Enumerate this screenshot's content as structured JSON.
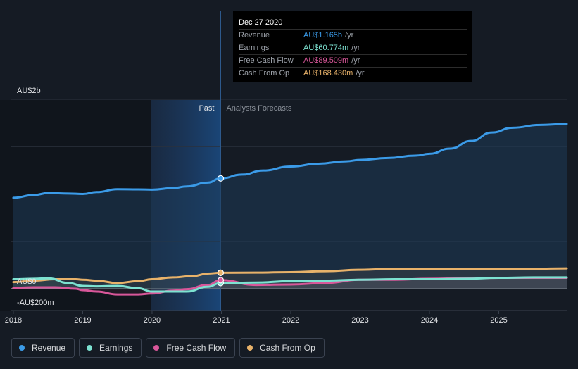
{
  "tooltip": {
    "date": "Dec 27 2020",
    "rows": [
      {
        "label": "Revenue",
        "value": "AU$1.165b",
        "unit": "/yr",
        "color": "#3b9be8"
      },
      {
        "label": "Earnings",
        "value": "AU$60.774m",
        "unit": "/yr",
        "color": "#7de2d1"
      },
      {
        "label": "Free Cash Flow",
        "value": "AU$89.509m",
        "unit": "/yr",
        "color": "#d9579a"
      },
      {
        "label": "Cash From Op",
        "value": "AU$168.430m",
        "unit": "/yr",
        "color": "#e8b26a"
      }
    ]
  },
  "labels": {
    "past": "Past",
    "forecast": "Analysts Forecasts"
  },
  "legend": [
    {
      "label": "Revenue",
      "color": "#3b9be8"
    },
    {
      "label": "Earnings",
      "color": "#7de2d1"
    },
    {
      "label": "Free Cash Flow",
      "color": "#d9579a"
    },
    {
      "label": "Cash From Op",
      "color": "#e8b26a"
    }
  ],
  "chart_data": {
    "type": "line",
    "y_tick_labels": [
      "AU$2b",
      "AU$0",
      "-AU$200m"
    ],
    "y_tick_values": [
      2000,
      0,
      -200
    ],
    "ylim": [
      -200,
      2000
    ],
    "xlim": [
      2017.97,
      2025.98
    ],
    "x_tick_labels": [
      "2018",
      "2019",
      "2020",
      "2021",
      "2022",
      "2023",
      "2024",
      "2025"
    ],
    "past_end": 2020.99,
    "highlight_start": 2019.98,
    "series": [
      {
        "name": "Revenue",
        "color": "#3b9be8",
        "x": [
          2018.0,
          2018.3,
          2018.5,
          2018.8,
          2019.0,
          2019.2,
          2019.5,
          2019.8,
          2020.0,
          2020.3,
          2020.5,
          2020.8,
          2020.99,
          2021.3,
          2021.6,
          2022.0,
          2022.4,
          2022.8,
          2023.0,
          2023.4,
          2023.8,
          2024.0,
          2024.3,
          2024.6,
          2024.9,
          2025.2,
          2025.6,
          2025.98
        ],
        "y": [
          960,
          990,
          1010,
          1005,
          1000,
          1020,
          1050,
          1048,
          1046,
          1062,
          1080,
          1120,
          1165,
          1205,
          1248,
          1290,
          1320,
          1345,
          1360,
          1380,
          1405,
          1425,
          1480,
          1560,
          1650,
          1700,
          1730,
          1740
        ]
      },
      {
        "name": "Earnings",
        "color": "#7de2d1",
        "x": [
          2018.0,
          2018.3,
          2018.5,
          2018.8,
          2019.0,
          2019.2,
          2019.5,
          2019.8,
          2020.0,
          2020.3,
          2020.5,
          2020.8,
          2020.99,
          2021.5,
          2022.0,
          2022.5,
          2023.0,
          2023.5,
          2024.0,
          2024.5,
          2025.0,
          2025.5,
          2025.98
        ],
        "y": [
          100,
          105,
          110,
          60,
          30,
          25,
          30,
          5,
          -30,
          -30,
          -30,
          20,
          60,
          65,
          80,
          85,
          95,
          100,
          100,
          105,
          115,
          120,
          120
        ]
      },
      {
        "name": "Free Cash Flow",
        "color": "#d9579a",
        "x": [
          2018.0,
          2018.3,
          2018.6,
          2018.9,
          2019.0,
          2019.2,
          2019.5,
          2019.8,
          2020.0,
          2020.3,
          2020.5,
          2020.8,
          2020.99,
          2021.5,
          2022.0,
          2022.5,
          2023.0,
          2023.5,
          2024.0,
          2024.5,
          2025.0,
          2025.5,
          2025.98
        ],
        "y": [
          10,
          15,
          15,
          0,
          -15,
          -30,
          -60,
          -60,
          -50,
          -20,
          -5,
          40,
          90,
          40,
          45,
          60,
          95,
          95,
          105,
          110,
          115,
          115,
          115
        ]
      },
      {
        "name": "Cash From Op",
        "color": "#e8b26a",
        "x": [
          2018.0,
          2018.3,
          2018.6,
          2018.9,
          2019.0,
          2019.2,
          2019.5,
          2019.8,
          2020.0,
          2020.3,
          2020.6,
          2020.8,
          2020.99,
          2021.5,
          2022.0,
          2022.5,
          2023.0,
          2023.5,
          2024.0,
          2024.5,
          2025.0,
          2025.5,
          2025.98
        ],
        "y": [
          70,
          85,
          100,
          100,
          95,
          85,
          60,
          80,
          100,
          120,
          135,
          160,
          168,
          170,
          175,
          185,
          200,
          210,
          210,
          205,
          205,
          210,
          215
        ]
      }
    ]
  }
}
